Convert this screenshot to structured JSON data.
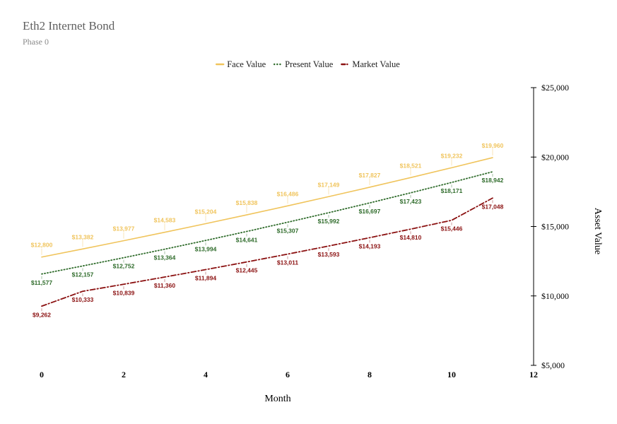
{
  "chart_data": {
    "type": "line",
    "title": "Eth2 Internet Bond",
    "subtitle": "Phase 0",
    "xlabel": "Month",
    "ylabel": "Asset Value",
    "xlim": [
      0,
      12
    ],
    "ylim": [
      5000,
      25000
    ],
    "x_ticks": [
      "0",
      "2",
      "4",
      "6",
      "8",
      "10",
      "12"
    ],
    "y_ticks": [
      "$5,000",
      "$10,000",
      "$15,000",
      "$20,000",
      "$25,000"
    ],
    "y_tick_values": [
      5000,
      10000,
      15000,
      20000,
      25000
    ],
    "x_tick_values": [
      0,
      2,
      4,
      6,
      8,
      10,
      12
    ],
    "legend_position": "top-center",
    "y_axis_position": "right",
    "x": [
      0,
      1,
      2,
      3,
      4,
      5,
      6,
      7,
      8,
      9,
      10,
      11
    ],
    "series": [
      {
        "name": "Face Value",
        "color": "#f0c45c",
        "style": "solid",
        "label_position": "above",
        "values": [
          12800,
          13382,
          13977,
          14583,
          15204,
          15838,
          16486,
          17149,
          17827,
          18521,
          19232,
          19960
        ],
        "labels": [
          "$12,800",
          "$13,382",
          "$13,977",
          "$14,583",
          "$15,204",
          "$15,838",
          "$16,486",
          "$17,149",
          "$17,827",
          "$18,521",
          "$19,232",
          "$19,960"
        ]
      },
      {
        "name": "Present Value",
        "color": "#2e6b2a",
        "style": "dotted",
        "label_position": "below",
        "values": [
          11577,
          12157,
          12752,
          13364,
          13994,
          14641,
          15307,
          15992,
          16697,
          17423,
          18171,
          18942
        ],
        "labels": [
          "$11,577",
          "$12,157",
          "$12,752",
          "$13,364",
          "$13,994",
          "$14,641",
          "$15,307",
          "$15,992",
          "$16,697",
          "$17,423",
          "$18,171",
          "$18,942"
        ]
      },
      {
        "name": "Market Value",
        "color": "#8b1111",
        "style": "dashdot",
        "label_position": "below",
        "values": [
          9262,
          10333,
          10839,
          11360,
          11894,
          12445,
          13011,
          13593,
          14193,
          14810,
          15446,
          17048
        ],
        "labels": [
          "$9,262",
          "$10,333",
          "$10,839",
          "$11,360",
          "$11,894",
          "$12,445",
          "$13,011",
          "$13,593",
          "$14,193",
          "$14,810",
          "$15,446",
          "$17,048"
        ]
      }
    ]
  }
}
